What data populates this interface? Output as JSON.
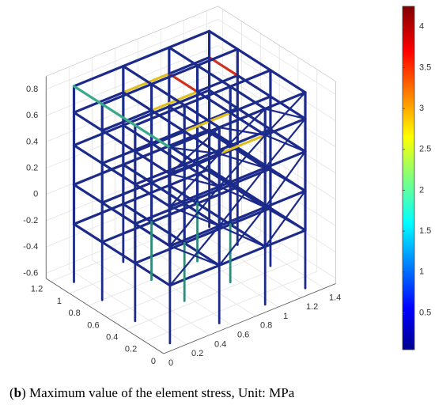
{
  "chart_data": {
    "type": "3d-frame",
    "xlim": [
      0,
      1.25
    ],
    "xticks": [
      0,
      0.2,
      0.4,
      0.6,
      0.8,
      1,
      1.2
    ],
    "ylim": [
      0,
      1.5
    ],
    "yticks": [
      0,
      0.2,
      0.4,
      0.6,
      0.8,
      1,
      1.2,
      1.4
    ],
    "zlim": [
      -0.64,
      0.9
    ],
    "zticks": [
      -0.6,
      -0.4,
      -0.2,
      0,
      0.2,
      0.4,
      0.6,
      0.8
    ],
    "grid": true,
    "colorbar": {
      "colormap": "jet",
      "lim": [
        0.05,
        4.25
      ],
      "ticks": [
        0.5,
        1,
        1.5,
        2,
        2.5,
        3,
        3.5,
        4
      ]
    },
    "caption": [
      "(",
      "b",
      ") Maximum value of the element stress, Unit: MPa"
    ]
  }
}
